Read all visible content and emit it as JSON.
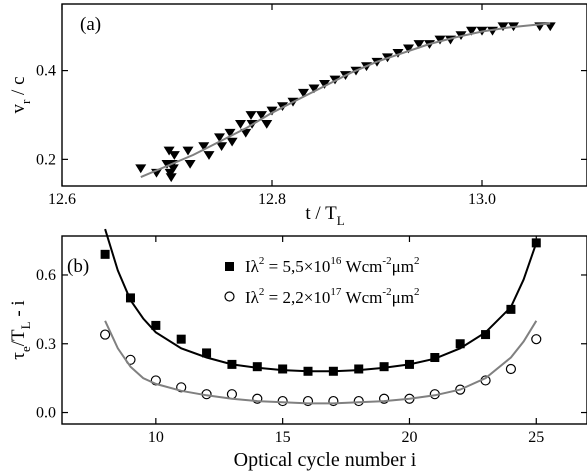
{
  "chart_data": [
    {
      "type": "scatter",
      "panel_label": "(a)",
      "xlabel": "t / T",
      "xlabel_sub": "L",
      "ylabel": "v",
      "ylabel_sub": "r",
      "ylabel_tail": " / c",
      "xlim": [
        12.6,
        13.1
      ],
      "ylim": [
        0.14,
        0.55
      ],
      "xticks": [
        12.6,
        12.8,
        13.0
      ],
      "xtick_labels": [
        "12.6",
        "12.8",
        "13.0"
      ],
      "yticks": [
        0.2,
        0.4
      ],
      "ytick_labels": [
        "0.2",
        "0.4"
      ],
      "grid": false,
      "series": [
        {
          "marker": "triangle-down",
          "color": "#000000",
          "x": [
            12.675,
            12.69,
            12.7,
            12.702,
            12.703,
            12.704,
            12.705,
            12.706,
            12.707,
            12.72,
            12.722,
            12.735,
            12.74,
            12.75,
            12.752,
            12.76,
            12.762,
            12.77,
            12.775,
            12.78,
            12.781,
            12.79,
            12.795,
            12.8,
            12.81,
            12.82,
            12.83,
            12.84,
            12.85,
            12.86,
            12.87,
            12.88,
            12.89,
            12.9,
            12.91,
            12.92,
            12.93,
            12.94,
            12.95,
            12.96,
            12.97,
            12.98,
            12.99,
            13.0,
            13.01,
            13.02,
            13.03,
            13.055,
            13.065
          ],
          "y": [
            0.18,
            0.17,
            0.19,
            0.22,
            0.17,
            0.16,
            0.19,
            0.18,
            0.21,
            0.22,
            0.19,
            0.23,
            0.21,
            0.25,
            0.23,
            0.26,
            0.24,
            0.28,
            0.26,
            0.3,
            0.28,
            0.3,
            0.28,
            0.31,
            0.32,
            0.33,
            0.35,
            0.36,
            0.37,
            0.38,
            0.39,
            0.4,
            0.41,
            0.42,
            0.43,
            0.44,
            0.45,
            0.46,
            0.46,
            0.47,
            0.47,
            0.48,
            0.49,
            0.49,
            0.49,
            0.5,
            0.5,
            0.5,
            0.5
          ]
        },
        {
          "type": "line",
          "color": "#808080",
          "x": [
            12.675,
            12.7,
            12.725,
            12.75,
            12.775,
            12.8,
            12.825,
            12.85,
            12.875,
            12.9,
            12.925,
            12.95,
            12.975,
            13.0,
            13.025,
            13.05,
            13.065
          ],
          "y": [
            0.16,
            0.185,
            0.21,
            0.24,
            0.27,
            0.305,
            0.335,
            0.365,
            0.395,
            0.42,
            0.44,
            0.46,
            0.475,
            0.488,
            0.497,
            0.503,
            0.506
          ]
        }
      ]
    },
    {
      "type": "scatter",
      "panel_label": "(b)",
      "xlabel": "Optical cycle number i",
      "ylabel": "τ",
      "ylabel_sub1": "e",
      "ylabel_mid": "/T",
      "ylabel_sub2": "L",
      "ylabel_tail": " - i",
      "xlim": [
        6.3,
        27
      ],
      "ylim": [
        -0.05,
        0.77
      ],
      "xticks": [
        10,
        15,
        20,
        25
      ],
      "xtick_labels": [
        "10",
        "15",
        "20",
        "25"
      ],
      "yticks": [
        0.0,
        0.3,
        0.6
      ],
      "ytick_labels": [
        "0.0",
        "0.3",
        "0.6"
      ],
      "grid": false,
      "legend_position": "top-center",
      "series": [
        {
          "marker": "filled-square",
          "color": "#000000",
          "legend_base": "Iλ",
          "legend_sup": "2",
          "legend_mid": " = 5,5×10",
          "legend_exp": "16",
          "legend_unit": " Wcm",
          "legend_unit_exp": "-2",
          "legend_unit2": "μm",
          "legend_unit2_exp": "2",
          "x": [
            8,
            9,
            10,
            11,
            12,
            13,
            14,
            15,
            16,
            17,
            18,
            19,
            20,
            21,
            22,
            23,
            24,
            25
          ],
          "y": [
            0.69,
            0.5,
            0.38,
            0.32,
            0.26,
            0.21,
            0.2,
            0.19,
            0.18,
            0.18,
            0.19,
            0.2,
            0.21,
            0.24,
            0.3,
            0.34,
            0.45,
            0.74
          ]
        },
        {
          "marker": "open-circle",
          "color": "#000000",
          "legend_base": "Iλ",
          "legend_sup": "2",
          "legend_mid": " = 2,2×10",
          "legend_exp": "17",
          "legend_unit": " Wcm",
          "legend_unit_exp": "-2",
          "legend_unit2": "μm",
          "legend_unit2_exp": "2",
          "x": [
            8,
            9,
            10,
            11,
            12,
            13,
            14,
            15,
            16,
            17,
            18,
            19,
            20,
            21,
            22,
            23,
            24,
            25
          ],
          "y": [
            0.34,
            0.23,
            0.14,
            0.11,
            0.08,
            0.08,
            0.06,
            0.05,
            0.05,
            0.05,
            0.05,
            0.06,
            0.06,
            0.08,
            0.1,
            0.14,
            0.19,
            0.32
          ]
        },
        {
          "type": "line",
          "color": "#000000",
          "x": [
            8.0,
            8.5,
            9,
            9.5,
            10,
            11,
            12,
            13,
            14,
            15,
            16,
            17,
            18,
            19,
            20,
            21,
            22,
            23,
            24,
            24.5,
            25
          ],
          "y": [
            0.8,
            0.62,
            0.49,
            0.41,
            0.35,
            0.28,
            0.24,
            0.21,
            0.195,
            0.185,
            0.18,
            0.18,
            0.185,
            0.195,
            0.21,
            0.235,
            0.28,
            0.35,
            0.46,
            0.58,
            0.74
          ]
        },
        {
          "type": "line",
          "color": "#808080",
          "x": [
            8.0,
            8.5,
            9,
            9.5,
            10,
            11,
            12,
            13,
            14,
            15,
            16,
            17,
            18,
            19,
            20,
            21,
            22,
            23,
            24,
            24.5,
            25
          ],
          "y": [
            0.4,
            0.28,
            0.2,
            0.15,
            0.125,
            0.095,
            0.075,
            0.06,
            0.05,
            0.045,
            0.04,
            0.04,
            0.045,
            0.05,
            0.06,
            0.075,
            0.1,
            0.15,
            0.24,
            0.31,
            0.4
          ]
        }
      ]
    }
  ]
}
